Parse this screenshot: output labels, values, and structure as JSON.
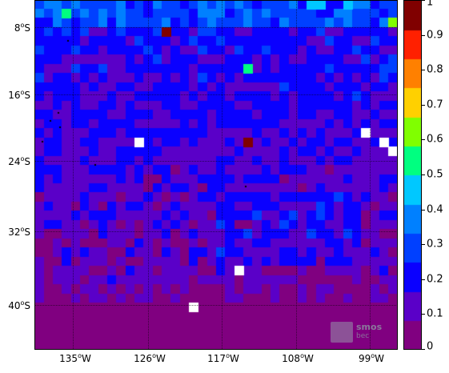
{
  "map": {
    "lat_labels": [
      {
        "deg": "8",
        "suffix": "S"
      },
      {
        "deg": "16",
        "suffix": "S"
      },
      {
        "deg": "24",
        "suffix": "S"
      },
      {
        "deg": "32",
        "suffix": "S"
      },
      {
        "deg": "40",
        "suffix": "S"
      }
    ],
    "lon_labels": [
      {
        "deg": "135",
        "suffix": "W"
      },
      {
        "deg": "126",
        "suffix": "W"
      },
      {
        "deg": "117",
        "suffix": "W"
      },
      {
        "deg": "108",
        "suffix": "W"
      },
      {
        "deg": "99",
        "suffix": "W"
      }
    ],
    "grid_size": {
      "cols": 40,
      "rows": 38
    }
  },
  "colorbar": {
    "ticks": [
      "0",
      "0.1",
      "0.2",
      "0.3",
      "0.4",
      "0.5",
      "0.6",
      "0.7",
      "0.8",
      "0.9",
      "1"
    ],
    "range": [
      0,
      1
    ],
    "colors": [
      "#800080",
      "#5a00c8",
      "#0a00ff",
      "#0040ff",
      "#0080ff",
      "#00c8ff",
      "#00ff80",
      "#80ff00",
      "#ffd000",
      "#ff8000",
      "#ff2000",
      "#800000"
    ]
  },
  "watermark": {
    "title": "smos",
    "subtitle": "bec"
  }
}
